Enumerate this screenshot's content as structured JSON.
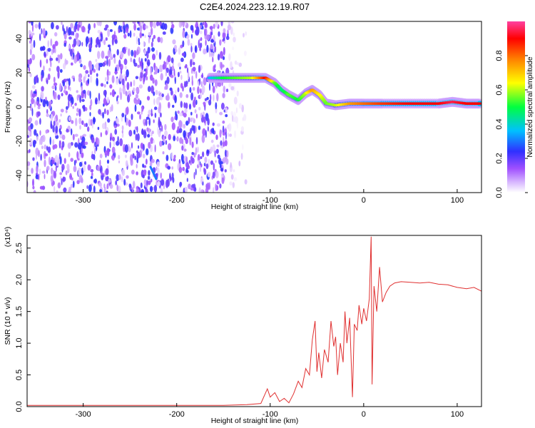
{
  "title": "C2E4.2024.223.12.19.R07",
  "chart_data": [
    {
      "type": "heatmap",
      "xlabel": "Height of straight line (km)",
      "ylabel": "Frequency (Hz)",
      "xlim": [
        -360,
        126
      ],
      "ylim": [
        -50,
        50
      ],
      "xticks": [
        -300,
        -200,
        -100,
        0,
        100
      ],
      "yticks": [
        -40,
        -20,
        0,
        20,
        40
      ],
      "grid": false,
      "colorbar": {
        "label": "Normalized spectral amplitude",
        "range": [
          0,
          1
        ],
        "ticks": [
          0.0,
          0.2,
          0.4,
          0.6,
          0.8
        ],
        "colors": [
          "#ffffff",
          "#a050ff",
          "#3030ff",
          "#00c0ff",
          "#00ff40",
          "#ffff00",
          "#ff8000",
          "#ff0000",
          "#ff40a0"
        ]
      },
      "noise_region": {
        "x": [
          -360,
          -145
        ],
        "level": 0.2
      },
      "ridge": [
        {
          "x": -165,
          "y": 17,
          "amp": 0.35
        },
        {
          "x": -150,
          "y": 17,
          "amp": 0.5
        },
        {
          "x": -135,
          "y": 17,
          "amp": 0.55
        },
        {
          "x": -120,
          "y": 17,
          "amp": 0.6
        },
        {
          "x": -105,
          "y": 17,
          "amp": 0.9
        },
        {
          "x": -95,
          "y": 14,
          "amp": 0.55
        },
        {
          "x": -88,
          "y": 10,
          "amp": 0.45
        },
        {
          "x": -80,
          "y": 7,
          "amp": 0.55
        },
        {
          "x": -70,
          "y": 4,
          "amp": 0.5
        },
        {
          "x": -62,
          "y": 8,
          "amp": 0.6
        },
        {
          "x": -55,
          "y": 10,
          "amp": 0.75
        },
        {
          "x": -47,
          "y": 7,
          "amp": 0.65
        },
        {
          "x": -40,
          "y": 2,
          "amp": 0.55
        },
        {
          "x": -30,
          "y": 1,
          "amp": 0.6
        },
        {
          "x": -15,
          "y": 2,
          "amp": 0.75
        },
        {
          "x": 0,
          "y": 2,
          "amp": 0.8
        },
        {
          "x": 20,
          "y": 2,
          "amp": 0.85
        },
        {
          "x": 50,
          "y": 2,
          "amp": 0.9
        },
        {
          "x": 80,
          "y": 2,
          "amp": 0.9
        },
        {
          "x": 95,
          "y": 3,
          "amp": 0.95
        },
        {
          "x": 110,
          "y": 2,
          "amp": 0.9
        },
        {
          "x": 125,
          "y": 2,
          "amp": 0.9
        }
      ],
      "secondary_trace": [
        {
          "x": -228,
          "y": -35
        },
        {
          "x": -222,
          "y": -42
        }
      ]
    },
    {
      "type": "line",
      "xlabel": "Height of straight line (km)",
      "ylabel": "SNR (10 * v/v)",
      "yscale_label": "(x10⁴)",
      "xlim": [
        -360,
        126
      ],
      "ylim": [
        0,
        2.7
      ],
      "xticks": [
        -300,
        -200,
        -100,
        0,
        100
      ],
      "yticks": [
        0.0,
        0.5,
        1.0,
        1.5,
        2.0,
        2.5
      ],
      "grid": false,
      "series": [
        {
          "color": "#e03030",
          "points": [
            [
              -360,
              0.02
            ],
            [
              -300,
              0.02
            ],
            [
              -250,
              0.02
            ],
            [
              -200,
              0.02
            ],
            [
              -150,
              0.02
            ],
            [
              -125,
              0.03
            ],
            [
              -110,
              0.05
            ],
            [
              -103,
              0.28
            ],
            [
              -100,
              0.15
            ],
            [
              -95,
              0.22
            ],
            [
              -90,
              0.08
            ],
            [
              -85,
              0.13
            ],
            [
              -80,
              0.06
            ],
            [
              -75,
              0.2
            ],
            [
              -70,
              0.4
            ],
            [
              -66,
              0.3
            ],
            [
              -62,
              0.6
            ],
            [
              -58,
              0.5
            ],
            [
              -55,
              1.05
            ],
            [
              -52,
              1.35
            ],
            [
              -50,
              0.55
            ],
            [
              -48,
              0.85
            ],
            [
              -45,
              0.45
            ],
            [
              -42,
              0.9
            ],
            [
              -38,
              0.7
            ],
            [
              -35,
              1.35
            ],
            [
              -32,
              0.95
            ],
            [
              -30,
              1.1
            ],
            [
              -28,
              0.5
            ],
            [
              -25,
              1.0
            ],
            [
              -22,
              0.7
            ],
            [
              -20,
              1.5
            ],
            [
              -18,
              1.0
            ],
            [
              -15,
              1.4
            ],
            [
              -12,
              0.15
            ],
            [
              -10,
              1.3
            ],
            [
              -7,
              1.2
            ],
            [
              -5,
              1.6
            ],
            [
              -2,
              1.3
            ],
            [
              0,
              1.55
            ],
            [
              3,
              1.35
            ],
            [
              6,
              1.7
            ],
            [
              8,
              2.68
            ],
            [
              9,
              0.35
            ],
            [
              11,
              1.9
            ],
            [
              14,
              1.5
            ],
            [
              17,
              2.2
            ],
            [
              20,
              1.65
            ],
            [
              24,
              1.8
            ],
            [
              28,
              1.9
            ],
            [
              33,
              1.95
            ],
            [
              40,
              1.97
            ],
            [
              50,
              1.96
            ],
            [
              60,
              1.95
            ],
            [
              70,
              1.96
            ],
            [
              80,
              1.93
            ],
            [
              90,
              1.92
            ],
            [
              100,
              1.88
            ],
            [
              110,
              1.86
            ],
            [
              118,
              1.88
            ],
            [
              126,
              1.82
            ]
          ]
        }
      ]
    }
  ]
}
